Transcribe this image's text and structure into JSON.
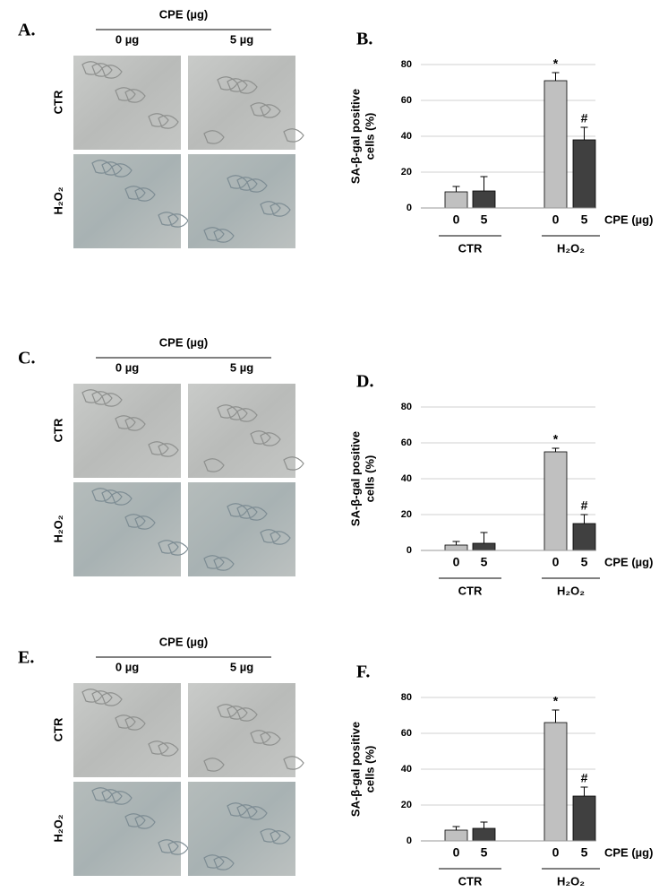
{
  "image_panels": [
    {
      "label": "A.",
      "header": "CPE (µg)",
      "columns": [
        "0 µg",
        "5 µg"
      ],
      "rows": [
        "CTR",
        "H₂O₂"
      ]
    },
    {
      "label": "C.",
      "header": "CPE (µg)",
      "columns": [
        "0 µg",
        "5 µg"
      ],
      "rows": [
        "CTR",
        "H₂O₂"
      ]
    },
    {
      "label": "E.",
      "header": "CPE (µg)",
      "columns": [
        "0 µg",
        "5 µg"
      ],
      "rows": [
        "CTR",
        "H₂O₂"
      ]
    }
  ],
  "chart_data": [
    {
      "type": "bar",
      "label": "B.",
      "ylabel": [
        "SA-β-gal positive",
        "cells (%)"
      ],
      "xlabel": "CPE (µg)",
      "categories": [
        "0",
        "5",
        "0",
        "5"
      ],
      "groups": [
        "CTR",
        "H₂O₂"
      ],
      "values": [
        9,
        9.5,
        71,
        38
      ],
      "errors": [
        3,
        8,
        4.5,
        7
      ],
      "colors": [
        "#c0c0c0",
        "#404040",
        "#c0c0c0",
        "#404040"
      ],
      "annotations": [
        {
          "bar": 2,
          "text": "*"
        },
        {
          "bar": 3,
          "text": "#"
        }
      ],
      "ylim": [
        0,
        80
      ],
      "yticks": [
        0,
        20,
        40,
        60,
        80
      ],
      "grid": true
    },
    {
      "type": "bar",
      "label": "D.",
      "ylabel": [
        "SA-β-gal positive",
        "cells (%)"
      ],
      "xlabel": "CPE (µg)",
      "categories": [
        "0",
        "5",
        "0",
        "5"
      ],
      "groups": [
        "CTR",
        "H₂O₂"
      ],
      "values": [
        3,
        4,
        55,
        15
      ],
      "errors": [
        2,
        6,
        2,
        5
      ],
      "colors": [
        "#c0c0c0",
        "#404040",
        "#c0c0c0",
        "#404040"
      ],
      "annotations": [
        {
          "bar": 2,
          "text": "*"
        },
        {
          "bar": 3,
          "text": "#"
        }
      ],
      "ylim": [
        0,
        80
      ],
      "yticks": [
        0,
        20,
        40,
        60,
        80
      ],
      "grid": true
    },
    {
      "type": "bar",
      "label": "F.",
      "ylabel": [
        "SA-β-gal positive",
        "cells (%)"
      ],
      "xlabel": "CPE (µg)",
      "categories": [
        "0",
        "5",
        "0",
        "5"
      ],
      "groups": [
        "CTR",
        "H₂O₂"
      ],
      "values": [
        6,
        7,
        66,
        25
      ],
      "errors": [
        2,
        3.5,
        7,
        5
      ],
      "colors": [
        "#c0c0c0",
        "#404040",
        "#c0c0c0",
        "#404040"
      ],
      "annotations": [
        {
          "bar": 2,
          "text": "*"
        },
        {
          "bar": 3,
          "text": "#"
        }
      ],
      "ylim": [
        0,
        80
      ],
      "yticks": [
        0,
        20,
        40,
        60,
        80
      ],
      "grid": true
    }
  ]
}
